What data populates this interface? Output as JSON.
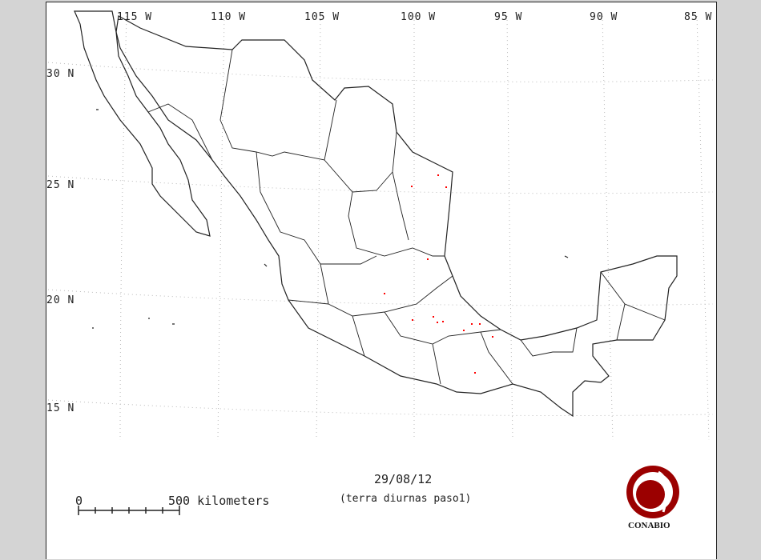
{
  "map": {
    "longitude_labels": [
      "115 W",
      "110 W",
      "105 W",
      "100 W",
      "95 W",
      "90 W",
      "85 W"
    ],
    "latitude_labels": [
      "30 N",
      "25 N",
      "20 N",
      "15 N"
    ],
    "date": "29/08/12",
    "subtitle": "(terra diurnas paso1)",
    "scale": {
      "start": "0",
      "end": "500 kilometers"
    },
    "logo_text": "CONABIO",
    "colors": {
      "hotspot": "#ff0000",
      "logo": "#9b0000",
      "border": "#222222",
      "grid": "#bbbbbb"
    },
    "hotspot_count": 14
  }
}
